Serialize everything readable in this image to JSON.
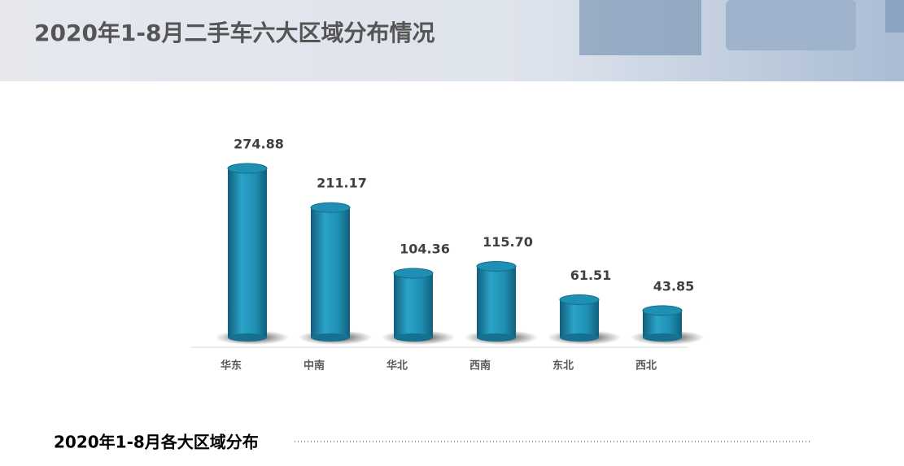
{
  "header": {
    "title": "2020年1-8月二手车六大区域分布情况"
  },
  "chart_data": {
    "type": "bar",
    "categories": [
      "华东",
      "中南",
      "华北",
      "西南",
      "东北",
      "西北"
    ],
    "values": [
      274.88,
      211.17,
      104.36,
      115.7,
      61.51,
      43.85
    ],
    "value_labels": [
      "274.88",
      "211.17",
      "104.36",
      "115.70",
      "61.51",
      "43.85"
    ],
    "color": "#1f8fb3"
  },
  "caption": "2020年1-8月各大区域分布"
}
